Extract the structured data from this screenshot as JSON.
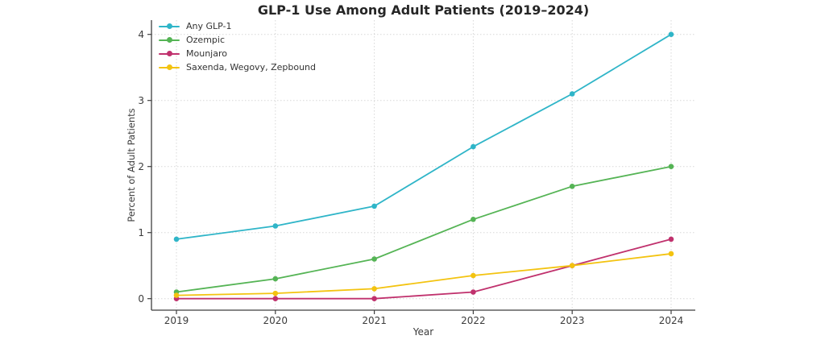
{
  "page": {
    "background_color": "#ffffff"
  },
  "chart_data": {
    "type": "line",
    "title": "GLP-1 Use Among Adult Patients (2019–2024)",
    "xlabel": "Year",
    "ylabel": "Percent of Adult Patients",
    "categories": [
      "2019",
      "2020",
      "2021",
      "2022",
      "2023",
      "2024"
    ],
    "yticks": [
      "0",
      "1",
      "2",
      "3",
      "4"
    ],
    "ylim": [
      -0.2,
      4.2
    ],
    "xlim_padding_years": 0.25,
    "grid": "dotted, both axes, light gray",
    "grid_color": "#d7d7d7",
    "spine_color": "#3f3f3f",
    "tick_label_color": "#3c3c3c",
    "legend_position": "upper-left, frameless",
    "marker": "circle",
    "series": [
      {
        "name": "Any GLP-1",
        "color": "#2fb5c8",
        "values": [
          0.9,
          1.1,
          1.4,
          2.3,
          3.1,
          4.0
        ]
      },
      {
        "name": "Ozempic",
        "color": "#55b455",
        "values": [
          0.1,
          0.3,
          0.6,
          1.2,
          1.7,
          2.0
        ]
      },
      {
        "name": "Mounjaro",
        "color": "#c0316d",
        "values": [
          0.0,
          0.0,
          0.0,
          0.1,
          0.5,
          0.9
        ]
      },
      {
        "name": "Saxenda, Wegovy, Zepbound",
        "color": "#f3c310",
        "values": [
          0.05,
          0.08,
          0.15,
          0.35,
          0.5,
          0.68
        ]
      }
    ]
  }
}
